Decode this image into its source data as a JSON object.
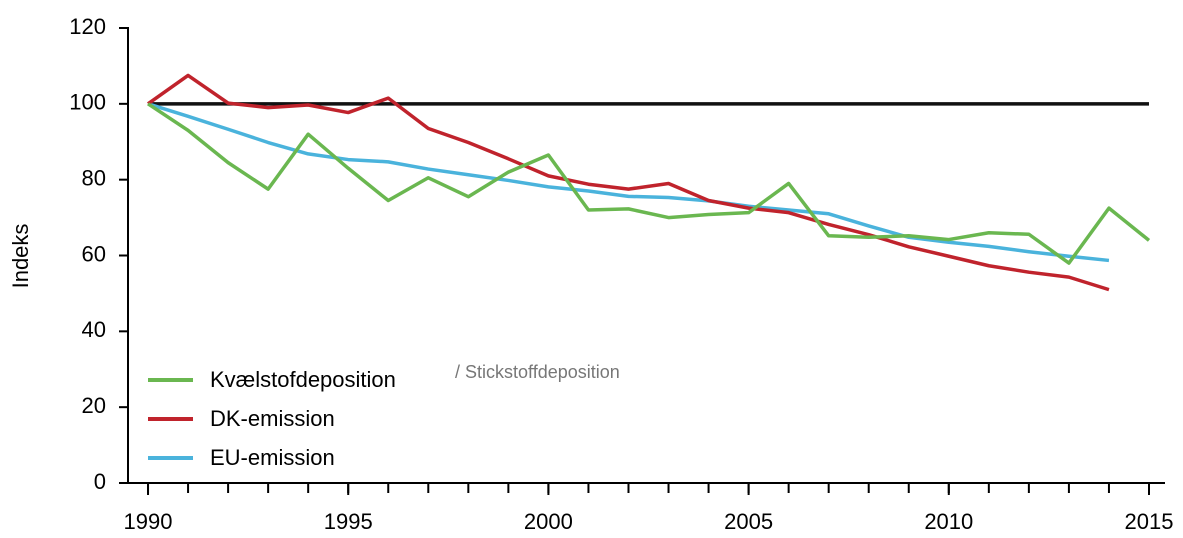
{
  "chart_data": {
    "type": "line",
    "ylabel": "Indeks",
    "annotation": "/ Stickstoffdeposition",
    "x": [
      1990,
      1991,
      1992,
      1993,
      1994,
      1995,
      1996,
      1997,
      1998,
      1999,
      2000,
      2001,
      2002,
      2003,
      2004,
      2005,
      2006,
      2007,
      2008,
      2009,
      2010,
      2011,
      2012,
      2013,
      2014,
      2015
    ],
    "series": [
      {
        "name": "Kvælstofdeposition",
        "color": "#6ab750",
        "values": [
          100,
          93,
          84.5,
          77.5,
          92,
          83,
          74.5,
          80.5,
          75.5,
          82,
          86.5,
          72,
          72.3,
          70,
          70.8,
          71.3,
          79,
          65.2,
          64.8,
          65.2,
          64.2,
          66,
          65.6,
          58,
          72.5,
          64
        ]
      },
      {
        "name": "DK-emission",
        "color": "#c0232c",
        "values": [
          100,
          107.5,
          100.2,
          99,
          99.7,
          97.7,
          101.5,
          93.5,
          89.8,
          85.5,
          81,
          78.8,
          77.5,
          79,
          74.5,
          72.5,
          71.3,
          68.2,
          65.5,
          62.3,
          59.8,
          57.3,
          55.6,
          54.3,
          51,
          null
        ]
      },
      {
        "name": "EU-emission",
        "color": "#4ab3dc",
        "values": [
          100,
          96.7,
          93.3,
          89.8,
          86.8,
          85.3,
          84.7,
          82.8,
          81.3,
          79.8,
          78.1,
          77,
          75.6,
          75.3,
          74.4,
          73,
          72,
          71,
          67.8,
          64.8,
          63.5,
          62.4,
          61,
          59.8,
          58.7,
          null
        ]
      }
    ],
    "reference_line": {
      "value": 100,
      "color": "#111111"
    },
    "xlim": [
      1989.5,
      2015.4
    ],
    "xticks": [
      1990,
      1995,
      2000,
      2005,
      2010,
      2015
    ],
    "ylim": [
      0,
      120
    ],
    "yticks": [
      0,
      20,
      40,
      60,
      80,
      100,
      120
    ],
    "legend": "lower left"
  }
}
